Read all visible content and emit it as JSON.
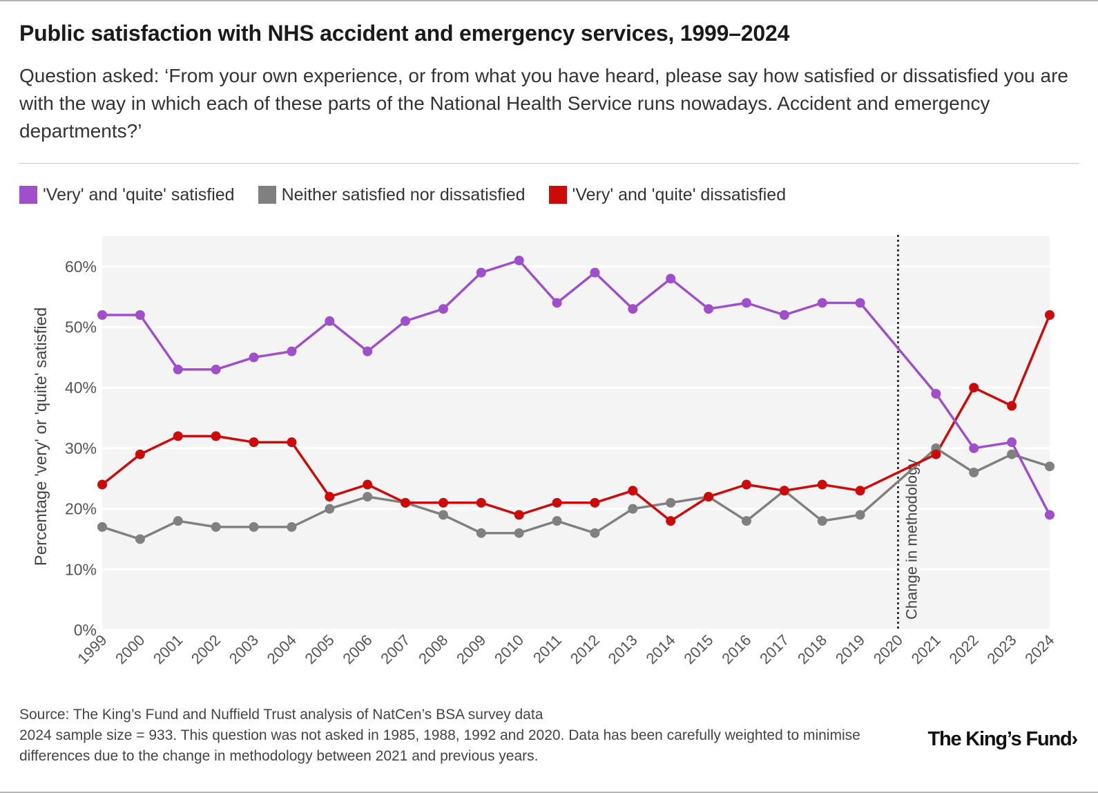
{
  "header": {
    "title": "Public satisfaction with NHS accident and emergency services, 1999–2024",
    "subtitle": "Question asked: ‘From your own experience, or from what you have heard, please say how satisfied or dissatisfied you are with the way in which each of these parts of the National Health Service runs nowadays. Accident and emergency departments?’"
  },
  "legend": [
    {
      "label": "'Very' and 'quite' satisfied",
      "color": "#9f4fc9"
    },
    {
      "label": "Neither satisfied nor dissatisfied",
      "color": "#808080"
    },
    {
      "label": "'Very' and 'quite' dissatisfied",
      "color": "#cc0a0a"
    }
  ],
  "chart_data": {
    "type": "line",
    "title": "Public satisfaction with NHS accident and emergency services, 1999–2024",
    "xlabel": "",
    "ylabel": "Percentage 'very' or 'quite' satisfied",
    "ylim": [
      0,
      65
    ],
    "yticks": [
      0,
      10,
      20,
      30,
      40,
      50,
      60
    ],
    "ytick_labels": [
      "0%",
      "10%",
      "20%",
      "30%",
      "40%",
      "50%",
      "60%"
    ],
    "categories": [
      "1999",
      "2000",
      "2001",
      "2002",
      "2003",
      "2004",
      "2005",
      "2006",
      "2007",
      "2008",
      "2009",
      "2010",
      "2011",
      "2012",
      "2013",
      "2014",
      "2015",
      "2016",
      "2017",
      "2018",
      "2019",
      "2020",
      "2021",
      "2022",
      "2023",
      "2024"
    ],
    "series": [
      {
        "name": "'Very' and 'quite' satisfied",
        "color": "#9f4fc9",
        "values": [
          52,
          52,
          43,
          43,
          45,
          46,
          51,
          46,
          51,
          53,
          59,
          61,
          54,
          59,
          53,
          58,
          53,
          54,
          52,
          54,
          54,
          null,
          39,
          30,
          31,
          19
        ]
      },
      {
        "name": "Neither satisfied nor dissatisfied",
        "color": "#808080",
        "values": [
          17,
          15,
          18,
          17,
          17,
          17,
          20,
          22,
          21,
          19,
          16,
          16,
          18,
          16,
          20,
          21,
          22,
          18,
          23,
          18,
          19,
          null,
          30,
          26,
          29,
          27
        ]
      },
      {
        "name": "'Very' and 'quite' dissatisfied",
        "color": "#cc0a0a",
        "values": [
          24,
          29,
          32,
          32,
          31,
          31,
          22,
          24,
          21,
          21,
          21,
          19,
          21,
          21,
          23,
          18,
          22,
          24,
          23,
          24,
          23,
          null,
          29,
          40,
          37,
          52
        ]
      }
    ],
    "annotations": [
      {
        "x": "2020",
        "label": "Change in methodology",
        "style": "dotted vertical line"
      }
    ],
    "grid": true,
    "legend_position": "top"
  },
  "footer": {
    "source": "Source: The King’s Fund and Nuffield Trust analysis of NatCen’s BSA survey data",
    "note": "2024 sample size = 933. This question was not asked in 1985, 1988, 1992 and 2020. Data has been carefully weighted to minimise differences due to the change in methodology between 2021 and previous years."
  },
  "branding": {
    "logo_text": "The King’s Fund"
  }
}
